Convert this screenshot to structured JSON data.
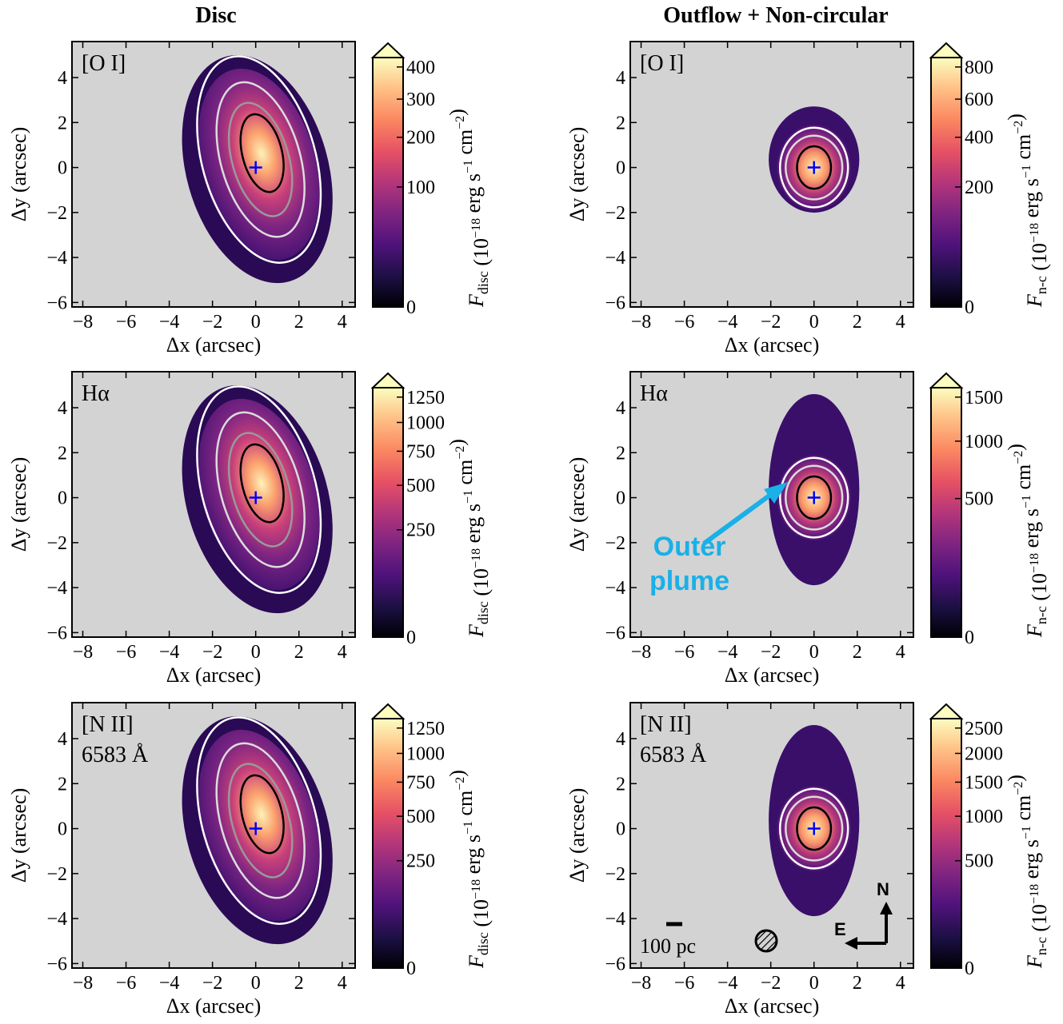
{
  "figure": {
    "col_titles": [
      "Disc",
      "Outflow + Non-circular"
    ],
    "xlabel": "Δx (arcsec)",
    "ylabel": "Δy (arcsec)",
    "x_ticks": [
      "−8",
      "−6",
      "−4",
      "−2",
      "0",
      "2",
      "4"
    ],
    "y_ticks": [
      "4",
      "2",
      "0",
      "−2",
      "−4",
      "−6"
    ],
    "cbar_disc_label": "F_disc (10^−18 erg s^−1 cm^−2)",
    "cbar_nc_label": "F_n-c (10^−18 erg s^−1 cm^−2)",
    "cbar_disc_main": "F",
    "cbar_disc_sub": "disc",
    "cbar_nc_main": "F",
    "cbar_nc_sub": "n-c",
    "cbar_units": "(10",
    "cbar_units_exp": "−18",
    "cbar_units_rest": " erg s",
    "cbar_units_exp2": "−1",
    "cbar_units_rest2": " cm",
    "cbar_units_exp3": "−2",
    "cbar_units_end": ")",
    "annotation_line1": "Outer",
    "annotation_line2": "plume",
    "scalebar_label": "100 pc",
    "compass_n": "N",
    "compass_e": "E",
    "colors": {
      "background": "#d3d3d3",
      "annotation": "#1ab0e8",
      "center_marker": "#0000ff"
    }
  },
  "chart_data": [
    {
      "type": "heatmap",
      "title": "[O I]",
      "column": "Disc",
      "xlim": [
        -8.5,
        4.6
      ],
      "ylim": [
        -6.2,
        5.6
      ],
      "colorbar_ticks": [
        "0",
        "100",
        "200",
        "300",
        "400"
      ],
      "colorbar_extend": "max"
    },
    {
      "type": "heatmap",
      "title": "[O I]",
      "column": "Outflow + Non-circular",
      "xlim": [
        -8.5,
        4.6
      ],
      "ylim": [
        -6.2,
        5.6
      ],
      "colorbar_ticks": [
        "0",
        "200",
        "400",
        "600",
        "800"
      ],
      "colorbar_extend": "max"
    },
    {
      "type": "heatmap",
      "title": "Hα",
      "column": "Disc",
      "xlim": [
        -8.5,
        4.6
      ],
      "ylim": [
        -6.2,
        5.6
      ],
      "colorbar_ticks": [
        "0",
        "250",
        "500",
        "750",
        "1000",
        "1250"
      ],
      "colorbar_extend": "max"
    },
    {
      "type": "heatmap",
      "title": "Hα",
      "column": "Outflow + Non-circular",
      "xlim": [
        -8.5,
        4.6
      ],
      "ylim": [
        -6.2,
        5.6
      ],
      "colorbar_ticks": [
        "0",
        "500",
        "1000",
        "1500"
      ],
      "colorbar_extend": "max"
    },
    {
      "type": "heatmap",
      "title": "[N II]",
      "subtitle": "6583 Å",
      "column": "Disc",
      "xlim": [
        -8.5,
        4.6
      ],
      "ylim": [
        -6.2,
        5.6
      ],
      "colorbar_ticks": [
        "0",
        "250",
        "500",
        "750",
        "1000",
        "1250"
      ],
      "colorbar_extend": "max"
    },
    {
      "type": "heatmap",
      "title": "[N II]",
      "subtitle": "6583 Å",
      "column": "Outflow + Non-circular",
      "xlim": [
        -8.5,
        4.6
      ],
      "ylim": [
        -6.2,
        5.6
      ],
      "colorbar_ticks": [
        "0",
        "500",
        "1000",
        "1500",
        "2000",
        "2500"
      ],
      "colorbar_extend": "max"
    }
  ]
}
